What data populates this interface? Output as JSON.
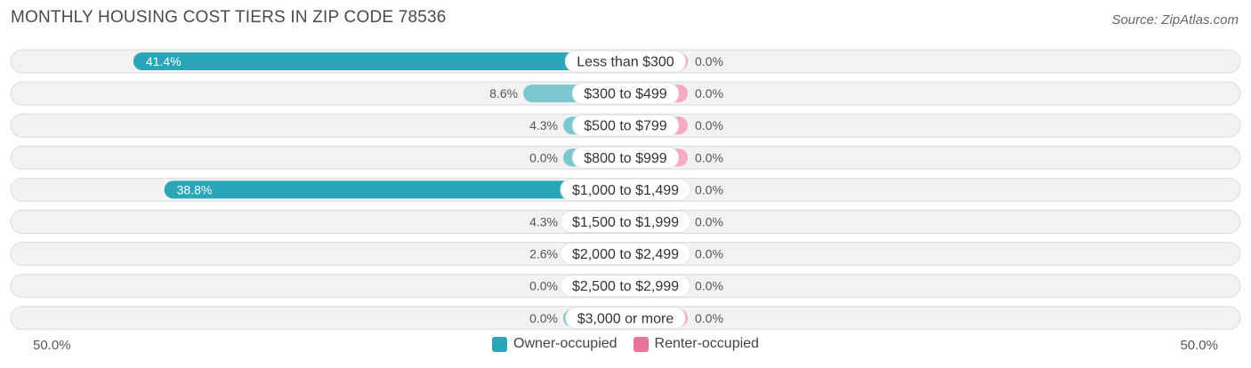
{
  "title": "MONTHLY HOUSING COST TIERS IN ZIP CODE 78536",
  "source": "Source: ZipAtlas.com",
  "colors": {
    "owner_strong": "#2ba6b8",
    "owner_light": "#7bc8d1",
    "renter": "#f5a9c4",
    "row_bg": "#f2f2f2",
    "row_border": "#dcdcdc"
  },
  "chart_data": {
    "type": "bar",
    "orientation": "horizontal-diverging",
    "title": "MONTHLY HOUSING COST TIERS IN ZIP CODE 78536",
    "categories": [
      "Less than $300",
      "$300 to $499",
      "$500 to $799",
      "$800 to $999",
      "$1,000 to $1,499",
      "$1,500 to $1,999",
      "$2,000 to $2,499",
      "$2,500 to $2,999",
      "$3,000 or more"
    ],
    "series": [
      {
        "name": "Owner-occupied",
        "values": [
          41.4,
          8.6,
          4.3,
          0.0,
          38.8,
          4.3,
          2.6,
          0.0,
          0.0
        ],
        "labels": [
          "41.4%",
          "8.6%",
          "4.3%",
          "0.0%",
          "38.8%",
          "4.3%",
          "2.6%",
          "0.0%",
          "0.0%"
        ]
      },
      {
        "name": "Renter-occupied",
        "values": [
          0.0,
          0.0,
          0.0,
          0.0,
          0.0,
          0.0,
          0.0,
          0.0,
          0.0
        ],
        "labels": [
          "0.0%",
          "0.0%",
          "0.0%",
          "0.0%",
          "0.0%",
          "0.0%",
          "0.0%",
          "0.0%",
          "0.0%"
        ]
      }
    ],
    "xlim": [
      -50,
      50
    ],
    "axis_left_label": "50.0%",
    "axis_right_label": "50.0%",
    "legend_position": "bottom-center"
  }
}
